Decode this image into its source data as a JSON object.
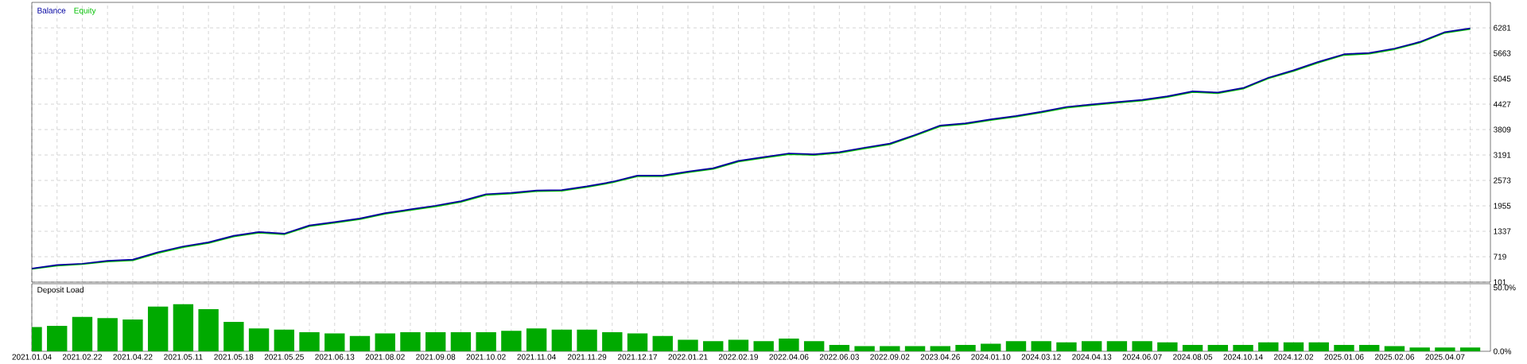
{
  "chart_data": [
    {
      "type": "line",
      "legend": "top left",
      "grid": true,
      "tick_labels": "y",
      "ylim": [
        101,
        6900
      ],
      "yticks": [
        101,
        719,
        1337,
        1955,
        2573,
        3191,
        3809,
        4427,
        5045,
        5663,
        6281
      ],
      "categories": [
        "2021.01.04",
        null,
        "2021.02.22",
        null,
        "2021.04.22",
        null,
        "2021.05.11",
        null,
        "2021.05.18",
        null,
        "2021.05.25",
        null,
        "2021.06.13",
        null,
        "2021.08.02",
        null,
        "2021.09.08",
        null,
        "2021.10.02",
        null,
        "2021.11.04",
        null,
        "2021.11.29",
        null,
        "2021.12.17",
        null,
        "2022.01.21",
        null,
        "2022.02.19",
        null,
        "2022.04.06",
        null,
        "2022.06.03",
        null,
        "2022.09.02",
        null,
        "2023.04.26",
        null,
        "2024.01.10",
        null,
        "2024.03.12",
        null,
        "2024.04.13",
        null,
        "2024.06.07",
        null,
        "2024.08.05",
        null,
        "2024.10.14",
        null,
        "2024.12.02",
        null,
        "2025.01.06",
        null,
        "2025.02.06",
        null,
        "2025.04.07",
        null
      ],
      "series": [
        {
          "name": "Equity",
          "color": "#00c000",
          "values": [
            420,
            500,
            540,
            600,
            630,
            810,
            950,
            1050,
            1210,
            1300,
            1260,
            1460,
            1540,
            1630,
            1760,
            1850,
            1940,
            2050,
            2220,
            2250,
            2310,
            2320,
            2410,
            2520,
            2670,
            2670,
            2770,
            2850,
            3030,
            3120,
            3210,
            3190,
            3240,
            3350,
            3450,
            3660,
            3890,
            3940,
            4040,
            4120,
            4220,
            4340,
            4400,
            4460,
            4510,
            4600,
            4720,
            4690,
            4800,
            5050,
            5230,
            5440,
            5620,
            5650,
            5760,
            5920,
            6160,
            6250
          ]
        },
        {
          "name": "Balance",
          "color": "#0000a0",
          "values": [
            430,
            520,
            550,
            620,
            650,
            830,
            970,
            1070,
            1230,
            1320,
            1280,
            1480,
            1560,
            1650,
            1780,
            1870,
            1960,
            2070,
            2240,
            2270,
            2330,
            2340,
            2430,
            2540,
            2690,
            2690,
            2790,
            2870,
            3050,
            3140,
            3230,
            3210,
            3260,
            3370,
            3470,
            3680,
            3910,
            3960,
            4060,
            4140,
            4240,
            4360,
            4420,
            4480,
            4530,
            4620,
            4740,
            4710,
            4820,
            5070,
            5250,
            5460,
            5640,
            5670,
            5780,
            5940,
            6180,
            6270
          ]
        }
      ]
    },
    {
      "type": "bar",
      "title": "Deposit Load",
      "grid": "x",
      "color": "#00aa00",
      "ylim": [
        0,
        53
      ],
      "yticks": [
        {
          "value": 0,
          "label": "0.0%"
        },
        {
          "value": 50,
          "label": "50.0%"
        }
      ],
      "categories": [
        "2021.01.04",
        null,
        "2021.02.22",
        null,
        "2021.04.22",
        null,
        "2021.05.11",
        null,
        "2021.05.18",
        null,
        "2021.05.25",
        null,
        "2021.06.13",
        null,
        "2021.08.02",
        null,
        "2021.09.08",
        null,
        "2021.10.02",
        null,
        "2021.11.04",
        null,
        "2021.11.29",
        null,
        "2021.12.17",
        null,
        "2022.01.21",
        null,
        "2022.02.19",
        null,
        "2022.04.06",
        null,
        "2022.06.03",
        null,
        "2022.09.02",
        null,
        "2023.04.26",
        null,
        "2024.01.10",
        null,
        "2024.03.12",
        null,
        "2024.04.13",
        null,
        "2024.06.07",
        null,
        "2024.08.05",
        null,
        "2024.10.14",
        null,
        "2024.12.02",
        null,
        "2025.01.06",
        null,
        "2025.02.06",
        null,
        "2025.04.07",
        null
      ],
      "values": [
        19,
        20,
        27,
        26,
        25,
        35,
        37,
        33,
        23,
        18,
        17,
        15,
        14,
        12,
        14,
        15,
        15,
        15,
        15,
        16,
        18,
        17,
        17,
        15,
        14,
        12,
        9,
        8,
        9,
        8,
        10,
        8,
        5,
        4,
        4,
        4,
        4,
        5,
        6,
        8,
        8,
        7,
        8,
        8,
        8,
        7,
        5,
        5,
        5,
        7,
        7,
        7,
        5,
        5,
        4,
        3,
        3,
        3
      ]
    }
  ]
}
